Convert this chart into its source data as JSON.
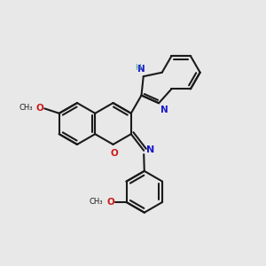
{
  "bg_color": "#e8e8e8",
  "bond_color": "#1a1a1a",
  "n_color": "#1a1acc",
  "o_color": "#cc1a1a",
  "h_color": "#3a9a9a",
  "lw": 1.5,
  "figsize": [
    3.0,
    3.0
  ],
  "dpi": 100,
  "xlim": [
    0,
    10
  ],
  "ylim": [
    0,
    10
  ],
  "bl": 0.78
}
